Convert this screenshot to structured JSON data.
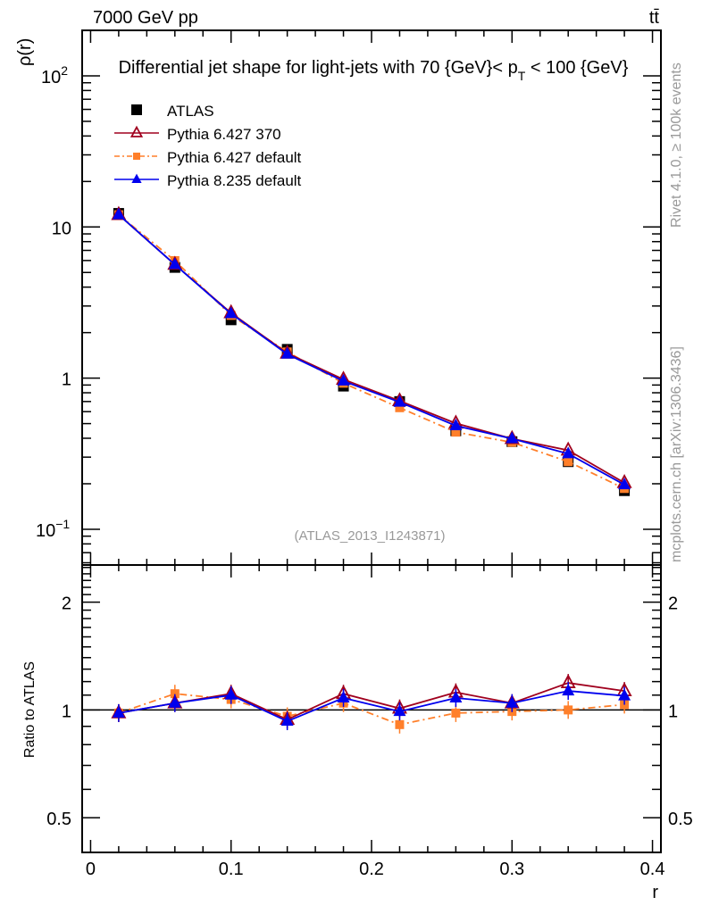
{
  "header": {
    "left": "7000 GeV pp",
    "right": "tt̄"
  },
  "side_texts": {
    "rivet": "Rivet 4.1.0, ≥ 100k events",
    "mcplots": "mcplots.cern.ch [arXiv:1306.3436]"
  },
  "chart_data": {
    "type": "line",
    "title_parts": [
      "Differential jet shape for light-jets with 70 {GeV}< p",
      "T",
      " < 100 {GeV}"
    ],
    "analysis_label": "(ATLAS_2013_I1243871)",
    "xlabel": "r",
    "ylabel": "ρ(r)",
    "ratio_ylabel": "Ratio to ATLAS",
    "xlim": [
      -0.006,
      0.406
    ],
    "ylim": [
      0.058,
      200
    ],
    "yscale": "log",
    "ratio_ylim": [
      0.4,
      2.54
    ],
    "x_ticks": [
      {
        "v": 0,
        "label": "0"
      },
      {
        "v": 0.1,
        "label": "0.1"
      },
      {
        "v": 0.2,
        "label": "0.2"
      },
      {
        "v": 0.3,
        "label": "0.3"
      },
      {
        "v": 0.4,
        "label": "0.4"
      }
    ],
    "y_ticks": [
      {
        "v": 100,
        "base": "10",
        "exp": "2"
      },
      {
        "v": 10,
        "base": "10",
        "exp": ""
      },
      {
        "v": 1,
        "base": "1",
        "exp": ""
      },
      {
        "v": 0.1,
        "base": "10",
        "exp": "−1"
      }
    ],
    "ratio_ticks": [
      {
        "v": 2,
        "label": "2"
      },
      {
        "v": 1,
        "label": "1"
      },
      {
        "v": 0.5,
        "label": "0.5"
      }
    ],
    "x": [
      0.02,
      0.06,
      0.1,
      0.14,
      0.18,
      0.22,
      0.26,
      0.3,
      0.34,
      0.38
    ],
    "legend_position": "top-left",
    "series": [
      {
        "name": "ATLAS",
        "color": "#000000",
        "marker": "square",
        "values": [
          12.3,
          5.4,
          2.43,
          1.55,
          0.885,
          0.7,
          0.448,
          0.38,
          0.28,
          0.18
        ],
        "ratio": [
          1,
          1,
          1,
          1,
          1,
          1,
          1,
          1,
          1,
          1
        ]
      },
      {
        "name": "Pythia 6.427 370",
        "color": "#a0001e",
        "marker": "open-triangle",
        "values": [
          12.05,
          5.64,
          2.7,
          1.46,
          0.98,
          0.707,
          0.502,
          0.397,
          0.333,
          0.203
        ],
        "ratio": [
          0.98,
          1.045,
          1.11,
          0.94,
          1.11,
          1.01,
          1.12,
          1.045,
          1.19,
          1.13
        ]
      },
      {
        "name": "Pythia 6.427 default",
        "color": "#ff7f2a",
        "marker": "square-small",
        "dash": "dashdot",
        "values": [
          12.05,
          5.99,
          2.6,
          1.49,
          0.925,
          0.637,
          0.439,
          0.376,
          0.28,
          0.186
        ],
        "ratio": [
          0.98,
          1.11,
          1.07,
          0.96,
          1.045,
          0.91,
          0.98,
          0.99,
          1.0,
          1.035
        ]
      },
      {
        "name": "Pythia 8.235 default",
        "color": "#0000ee",
        "marker": "triangle",
        "values": [
          12.05,
          5.64,
          2.67,
          1.44,
          0.956,
          0.693,
          0.484,
          0.397,
          0.316,
          0.197
        ],
        "ratio": [
          0.98,
          1.045,
          1.1,
          0.93,
          1.08,
          0.99,
          1.08,
          1.045,
          1.13,
          1.095
        ]
      }
    ]
  }
}
